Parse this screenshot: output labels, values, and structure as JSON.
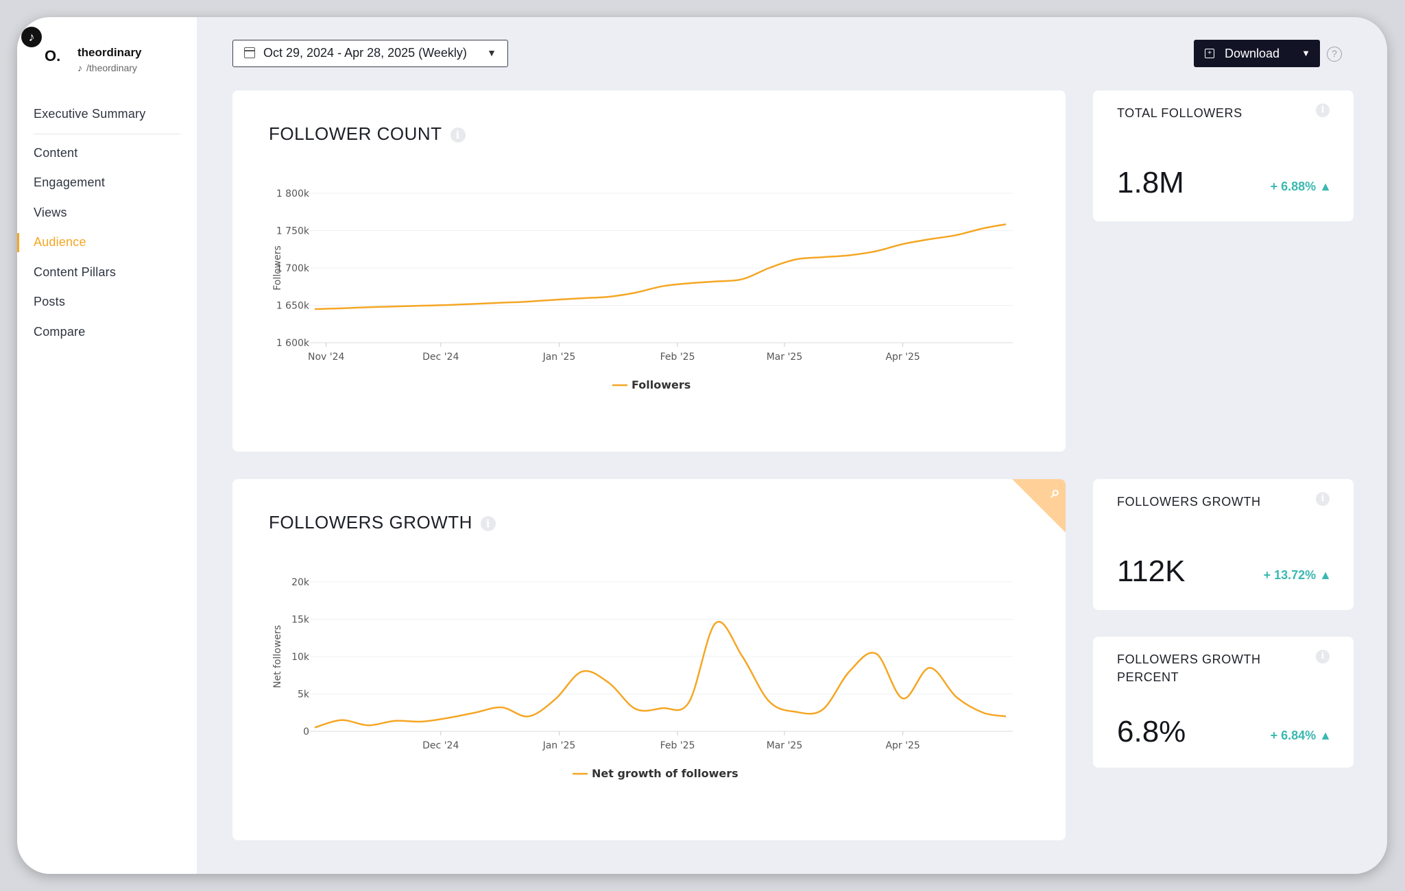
{
  "brand": {
    "name": "theordinary",
    "handle": "/theordinary",
    "avatar_text": "O.",
    "platform_icon": "tiktok-icon"
  },
  "nav": {
    "items": [
      {
        "label": "Executive Summary",
        "active": false
      },
      {
        "label": "Content",
        "active": false
      },
      {
        "label": "Engagement",
        "active": false
      },
      {
        "label": "Views",
        "active": false
      },
      {
        "label": "Audience",
        "active": true
      },
      {
        "label": "Content Pillars",
        "active": false
      },
      {
        "label": "Posts",
        "active": false
      },
      {
        "label": "Compare",
        "active": false
      }
    ]
  },
  "toolbar": {
    "date_range": "Oct 29, 2024 - Apr 28, 2025 (Weekly)",
    "download_label": "Download",
    "help_symbol": "?"
  },
  "colors": {
    "accent": "#f5a623",
    "positive": "#3bb8b1",
    "button_dark": "#121426"
  },
  "kpis": [
    {
      "label": "TOTAL FOLLOWERS",
      "value": "1.8M",
      "delta": "+ 6.88% ▲"
    },
    {
      "label": "FOLLOWERS GROWTH",
      "value": "112K",
      "delta": "+ 13.72% ▲"
    },
    {
      "label": "FOLLOWERS GROWTH PERCENT",
      "value": "6.8%",
      "delta": "+ 6.84% ▲"
    }
  ],
  "chart_data": [
    {
      "type": "line",
      "title": "FOLLOWER COUNT",
      "ylabel": "Followers",
      "xlabel": "",
      "x_ticks": [
        "Nov '24",
        "Dec '24",
        "Jan '25",
        "Feb '25",
        "Mar '25",
        "Apr '25"
      ],
      "y_ticks": [
        "1 600k",
        "1 650k",
        "1 700k",
        "1 750k",
        "1 800k"
      ],
      "ylim": [
        1600000,
        1800000
      ],
      "legend": "bottom-center",
      "grid": true,
      "series": [
        {
          "name": "Followers",
          "color": "#f5a623",
          "x": [
            "2024-10-29",
            "2024-11-05",
            "2024-11-12",
            "2024-11-19",
            "2024-11-26",
            "2024-12-03",
            "2024-12-10",
            "2024-12-17",
            "2024-12-24",
            "2024-12-31",
            "2025-01-07",
            "2025-01-14",
            "2025-01-21",
            "2025-01-28",
            "2025-02-04",
            "2025-02-11",
            "2025-02-18",
            "2025-02-25",
            "2025-03-04",
            "2025-03-11",
            "2025-03-18",
            "2025-03-25",
            "2025-04-01",
            "2025-04-08",
            "2025-04-15",
            "2025-04-22",
            "2025-04-28"
          ],
          "values": [
            1645000,
            1646000,
            1647500,
            1648500,
            1649500,
            1650500,
            1652000,
            1653500,
            1655000,
            1657500,
            1659500,
            1661500,
            1667000,
            1675500,
            1679500,
            1682000,
            1685000,
            1700000,
            1711500,
            1714500,
            1717000,
            1722500,
            1732000,
            1738500,
            1744000,
            1753000,
            1758500
          ]
        }
      ]
    },
    {
      "type": "line",
      "title": "FOLLOWERS GROWTH",
      "ylabel": "Net followers",
      "xlabel": "",
      "x_ticks": [
        "Dec '24",
        "Jan '25",
        "Feb '25",
        "Mar '25",
        "Apr '25"
      ],
      "y_ticks": [
        "0",
        "5k",
        "10k",
        "15k",
        "20k"
      ],
      "ylim": [
        0,
        20000
      ],
      "legend": "bottom-center",
      "grid": true,
      "series": [
        {
          "name": "Net growth of followers",
          "color": "#f5a623",
          "x": [
            "2024-10-29",
            "2024-11-05",
            "2024-11-12",
            "2024-11-19",
            "2024-11-26",
            "2024-12-03",
            "2024-12-10",
            "2024-12-17",
            "2024-12-24",
            "2024-12-31",
            "2025-01-07",
            "2025-01-14",
            "2025-01-21",
            "2025-01-28",
            "2025-02-04",
            "2025-02-11",
            "2025-02-18",
            "2025-02-25",
            "2025-03-04",
            "2025-03-11",
            "2025-03-18",
            "2025-03-25",
            "2025-04-01",
            "2025-04-08",
            "2025-04-15",
            "2025-04-22",
            "2025-04-28"
          ],
          "values": [
            500,
            1500,
            800,
            1400,
            1300,
            1800,
            2500,
            3200,
            2000,
            4300,
            8000,
            6500,
            3000,
            3100,
            3900,
            14500,
            10000,
            4000,
            2600,
            2900,
            8000,
            10400,
            4400,
            8500,
            4600,
            2500,
            2000
          ]
        }
      ]
    }
  ]
}
